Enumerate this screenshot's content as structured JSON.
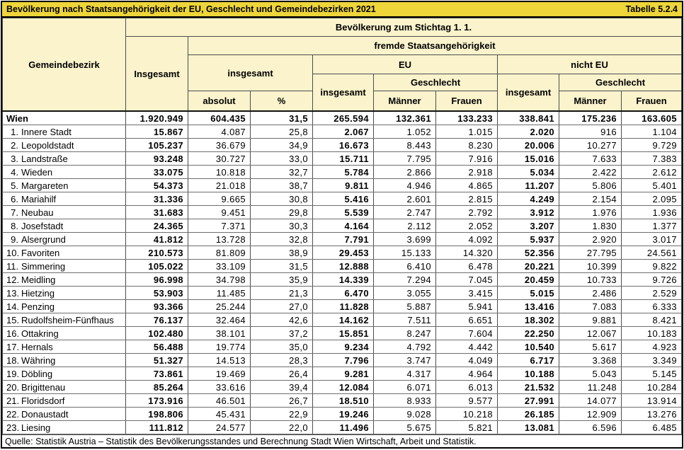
{
  "title_bar": {
    "title": "Bevölkerung nach Staatsangehörigkeit der EU, Geschlecht und Gemeindebezirken 2021",
    "table_number": "Tabelle 5.2.4"
  },
  "colors": {
    "title_bg": "#EDD53A",
    "header_bg": "#FAF3CC",
    "grid_line": "#4d4d4d",
    "outer_border": "#000000"
  },
  "header": {
    "gemeindebezirk": "Gemeindebezirk",
    "stichtag": "Bevölkerung zum Stichtag 1. 1.",
    "insgesamt_total": "Insgesamt",
    "fremde": "fremde Staatsangehörigkeit",
    "fremde_insgesamt": "insgesamt",
    "absolut": "absolut",
    "prozent": "%",
    "eu": "EU",
    "eu_insgesamt": "insgesamt",
    "eu_geschlecht": "Geschlecht",
    "eu_maenner": "Männer",
    "eu_frauen": "Frauen",
    "nicht_eu": "nicht EU",
    "nicht_eu_insgesamt": "insgesamt",
    "nicht_eu_geschlecht": "Geschlecht",
    "nicht_eu_maenner": "Männer",
    "nicht_eu_frauen": "Frauen"
  },
  "table": {
    "columns": [
      "Gemeindebezirk",
      "Insgesamt",
      "fremde insgesamt absolut",
      "fremde insgesamt %",
      "EU insgesamt",
      "EU Männer",
      "EU Frauen",
      "nicht EU insgesamt",
      "nicht EU Männer",
      "nicht EU Frauen"
    ],
    "rows": [
      {
        "num": "",
        "name": "Wien",
        "bold": true,
        "values": [
          "1.920.949",
          "604.435",
          "31,5",
          "265.594",
          "132.361",
          "133.233",
          "338.841",
          "175.236",
          "163.605"
        ]
      },
      {
        "num": "1.",
        "name": "Innere Stadt",
        "bold": false,
        "values": [
          "15.867",
          "4.087",
          "25,8",
          "2.067",
          "1.052",
          "1.015",
          "2.020",
          "916",
          "1.104"
        ]
      },
      {
        "num": "2.",
        "name": "Leopoldstadt",
        "bold": false,
        "values": [
          "105.237",
          "36.679",
          "34,9",
          "16.673",
          "8.443",
          "8.230",
          "20.006",
          "10.277",
          "9.729"
        ]
      },
      {
        "num": "3.",
        "name": "Landstraße",
        "bold": false,
        "values": [
          "93.248",
          "30.727",
          "33,0",
          "15.711",
          "7.795",
          "7.916",
          "15.016",
          "7.633",
          "7.383"
        ]
      },
      {
        "num": "4.",
        "name": "Wieden",
        "bold": false,
        "values": [
          "33.075",
          "10.818",
          "32,7",
          "5.784",
          "2.866",
          "2.918",
          "5.034",
          "2.422",
          "2.612"
        ]
      },
      {
        "num": "5.",
        "name": "Margareten",
        "bold": false,
        "values": [
          "54.373",
          "21.018",
          "38,7",
          "9.811",
          "4.946",
          "4.865",
          "11.207",
          "5.806",
          "5.401"
        ]
      },
      {
        "num": "6.",
        "name": "Mariahilf",
        "bold": false,
        "values": [
          "31.336",
          "9.665",
          "30,8",
          "5.416",
          "2.601",
          "2.815",
          "4.249",
          "2.154",
          "2.095"
        ]
      },
      {
        "num": "7.",
        "name": "Neubau",
        "bold": false,
        "values": [
          "31.683",
          "9.451",
          "29,8",
          "5.539",
          "2.747",
          "2.792",
          "3.912",
          "1.976",
          "1.936"
        ]
      },
      {
        "num": "8.",
        "name": "Josefstadt",
        "bold": false,
        "values": [
          "24.365",
          "7.371",
          "30,3",
          "4.164",
          "2.112",
          "2.052",
          "3.207",
          "1.830",
          "1.377"
        ]
      },
      {
        "num": "9.",
        "name": "Alsergrund",
        "bold": false,
        "values": [
          "41.812",
          "13.728",
          "32,8",
          "7.791",
          "3.699",
          "4.092",
          "5.937",
          "2.920",
          "3.017"
        ]
      },
      {
        "num": "10.",
        "name": "Favoriten",
        "bold": false,
        "values": [
          "210.573",
          "81.809",
          "38,9",
          "29.453",
          "15.133",
          "14.320",
          "52.356",
          "27.795",
          "24.561"
        ]
      },
      {
        "num": "11.",
        "name": "Simmering",
        "bold": false,
        "values": [
          "105.022",
          "33.109",
          "31,5",
          "12.888",
          "6.410",
          "6.478",
          "20.221",
          "10.399",
          "9.822"
        ]
      },
      {
        "num": "12.",
        "name": "Meidling",
        "bold": false,
        "values": [
          "96.998",
          "34.798",
          "35,9",
          "14.339",
          "7.294",
          "7.045",
          "20.459",
          "10.733",
          "9.726"
        ]
      },
      {
        "num": "13.",
        "name": "Hietzing",
        "bold": false,
        "values": [
          "53.903",
          "11.485",
          "21,3",
          "6.470",
          "3.055",
          "3.415",
          "5.015",
          "2.486",
          "2.529"
        ]
      },
      {
        "num": "14.",
        "name": "Penzing",
        "bold": false,
        "values": [
          "93.366",
          "25.244",
          "27,0",
          "11.828",
          "5.887",
          "5.941",
          "13.416",
          "7.083",
          "6.333"
        ]
      },
      {
        "num": "15.",
        "name": "Rudolfsheim-Fünfhaus",
        "bold": false,
        "values": [
          "76.137",
          "32.464",
          "42,6",
          "14.162",
          "7.511",
          "6.651",
          "18.302",
          "9.881",
          "8.421"
        ]
      },
      {
        "num": "16.",
        "name": "Ottakring",
        "bold": false,
        "values": [
          "102.480",
          "38.101",
          "37,2",
          "15.851",
          "8.247",
          "7.604",
          "22.250",
          "12.067",
          "10.183"
        ]
      },
      {
        "num": "17.",
        "name": "Hernals",
        "bold": false,
        "values": [
          "56.488",
          "19.774",
          "35,0",
          "9.234",
          "4.792",
          "4.442",
          "10.540",
          "5.617",
          "4.923"
        ]
      },
      {
        "num": "18.",
        "name": "Währing",
        "bold": false,
        "values": [
          "51.327",
          "14.513",
          "28,3",
          "7.796",
          "3.747",
          "4.049",
          "6.717",
          "3.368",
          "3.349"
        ]
      },
      {
        "num": "19.",
        "name": "Döbling",
        "bold": false,
        "values": [
          "73.861",
          "19.469",
          "26,4",
          "9.281",
          "4.317",
          "4.964",
          "10.188",
          "5.043",
          "5.145"
        ]
      },
      {
        "num": "20.",
        "name": "Brigittenau",
        "bold": false,
        "values": [
          "85.264",
          "33.616",
          "39,4",
          "12.084",
          "6.071",
          "6.013",
          "21.532",
          "11.248",
          "10.284"
        ]
      },
      {
        "num": "21.",
        "name": "Floridsdorf",
        "bold": false,
        "values": [
          "173.916",
          "46.501",
          "26,7",
          "18.510",
          "8.933",
          "9.577",
          "27.991",
          "14.077",
          "13.914"
        ]
      },
      {
        "num": "22.",
        "name": "Donaustadt",
        "bold": false,
        "values": [
          "198.806",
          "45.431",
          "22,9",
          "19.246",
          "9.028",
          "10.218",
          "26.185",
          "12.909",
          "13.276"
        ]
      },
      {
        "num": "23.",
        "name": "Liesing",
        "bold": false,
        "values": [
          "111.812",
          "24.577",
          "22,0",
          "11.496",
          "5.675",
          "5.821",
          "13.081",
          "6.596",
          "6.485"
        ]
      }
    ]
  },
  "footer": {
    "source": "Quelle: Statistik Austria – Statistik des Bevölkerungsstandes und Berechnung Stadt Wien Wirtschaft, Arbeit und Statistik."
  }
}
